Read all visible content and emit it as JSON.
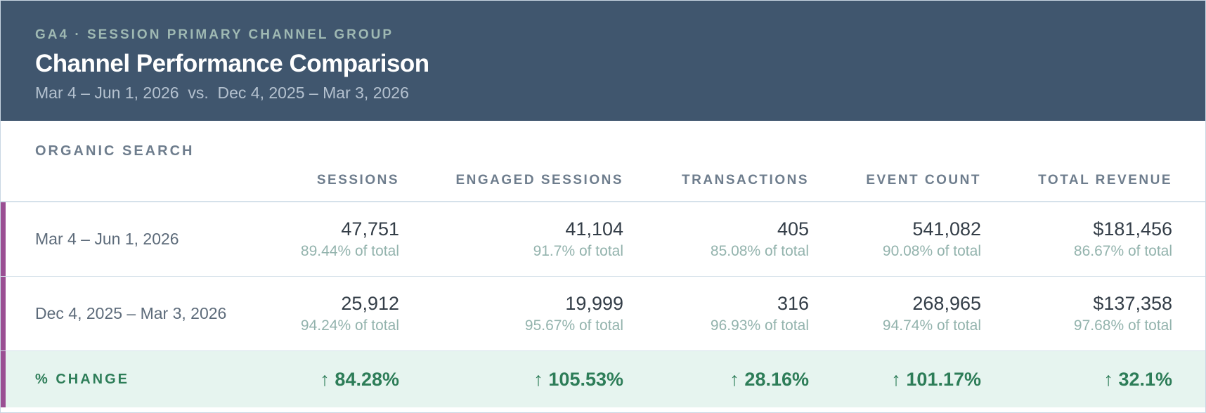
{
  "header": {
    "eyebrow": "GA4 · SESSION PRIMARY CHANNEL GROUP",
    "title": "Channel Performance Comparison",
    "subtitle": "Mar 4 – Jun 1, 2026  vs.  Dec 4, 2025 – Mar 3, 2026"
  },
  "table": {
    "section": "ORGANIC SEARCH",
    "columns": [
      "SESSIONS",
      "ENGAGED SESSIONS",
      "TRANSACTIONS",
      "EVENT COUNT",
      "TOTAL REVENUE"
    ],
    "rows": [
      {
        "label": "Mar 4 – Jun 1, 2026",
        "cells": [
          [
            "47,751",
            "89.44% of total"
          ],
          [
            "41,104",
            "91.7% of total"
          ],
          [
            "405",
            "85.08% of total"
          ],
          [
            "541,082",
            "90.08% of total"
          ],
          [
            "$181,456",
            "86.67% of total"
          ]
        ]
      },
      {
        "label": "Dec 4, 2025 – Mar 3, 2026",
        "cells": [
          [
            "25,912",
            "94.24% of total"
          ],
          [
            "19,999",
            "95.67% of total"
          ],
          [
            "316",
            "96.93% of total"
          ],
          [
            "268,965",
            "94.74% of total"
          ],
          [
            "$137,358",
            "97.68% of total"
          ]
        ]
      }
    ],
    "change": {
      "label": "% CHANGE",
      "cells": [
        "↑ 84.28%",
        "↑ 105.53%",
        "↑ 28.16%",
        "↑ 101.17%",
        "↑ 32.1%"
      ]
    }
  }
}
